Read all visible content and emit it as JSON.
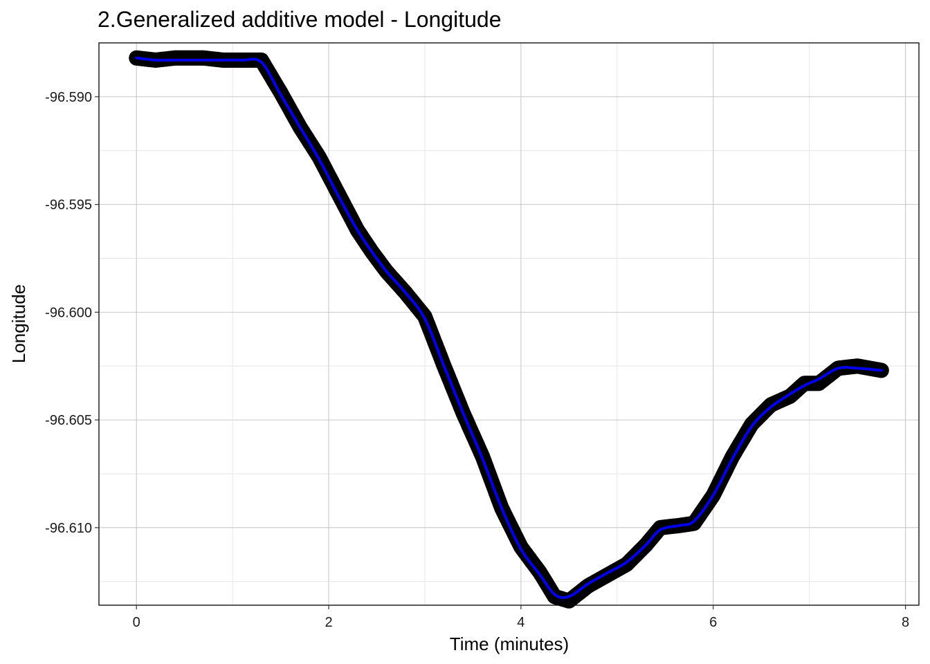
{
  "chart_data": {
    "type": "line",
    "title": "2.Generalized additive model - Longitude",
    "xlabel": "Time (minutes)",
    "ylabel": "Longitude",
    "xlim": [
      -0.39,
      8.14
    ],
    "ylim": [
      -96.6136,
      -96.5875
    ],
    "x_ticks": [
      0,
      2,
      4,
      6,
      8
    ],
    "y_ticks": [
      -96.59,
      -96.595,
      -96.6,
      -96.605,
      -96.61
    ],
    "x_tick_labels": [
      "0",
      "2",
      "4",
      "6",
      "8"
    ],
    "y_tick_labels": [
      "-96.590",
      "-96.595",
      "-96.600",
      "-96.605",
      "-96.610"
    ],
    "grid": true,
    "series": [
      {
        "style": "points",
        "color": "#000000",
        "x": [
          0.0,
          0.2,
          0.4,
          0.7,
          0.9,
          1.1,
          1.3,
          1.5,
          1.7,
          1.9,
          2.1,
          2.3,
          2.45,
          2.6,
          2.8,
          3.0,
          3.2,
          3.4,
          3.6,
          3.8,
          4.0,
          4.2,
          4.35,
          4.5,
          4.7,
          4.9,
          5.1,
          5.3,
          5.45,
          5.65,
          5.8,
          6.0,
          6.2,
          6.4,
          6.6,
          6.8,
          6.95,
          7.1,
          7.3,
          7.5,
          7.75
        ],
        "y": [
          -96.5882,
          -96.5883,
          -96.5882,
          -96.5882,
          -96.5883,
          -96.5883,
          -96.5883,
          -96.5898,
          -96.5914,
          -96.5928,
          -96.5945,
          -96.5962,
          -96.5972,
          -96.5981,
          -96.5991,
          -96.6002,
          -96.6025,
          -96.6047,
          -96.6067,
          -96.6091,
          -96.6109,
          -96.6121,
          -96.6132,
          -96.6134,
          -96.6127,
          -96.6122,
          -96.6117,
          -96.6108,
          -96.61,
          -96.6099,
          -96.6098,
          -96.6085,
          -96.6067,
          -96.6052,
          -96.6043,
          -96.6039,
          -96.6033,
          -96.6033,
          -96.6026,
          -96.6025,
          -96.6027
        ]
      },
      {
        "style": "smooth",
        "color": "#0000ee",
        "x": [
          0.0,
          0.2,
          0.4,
          0.7,
          0.9,
          1.1,
          1.3,
          1.5,
          1.7,
          1.9,
          2.1,
          2.3,
          2.45,
          2.6,
          2.8,
          3.0,
          3.2,
          3.4,
          3.6,
          3.8,
          4.0,
          4.2,
          4.35,
          4.5,
          4.7,
          4.9,
          5.1,
          5.3,
          5.45,
          5.65,
          5.8,
          6.0,
          6.2,
          6.4,
          6.6,
          6.8,
          6.95,
          7.1,
          7.3,
          7.5,
          7.75
        ],
        "y": [
          -96.5882,
          -96.5883,
          -96.5883,
          -96.5883,
          -96.5883,
          -96.5883,
          -96.5884,
          -96.5899,
          -96.5914,
          -96.5929,
          -96.5946,
          -96.5962,
          -96.5972,
          -96.5981,
          -96.5991,
          -96.6003,
          -96.6025,
          -96.6047,
          -96.6068,
          -96.6091,
          -96.611,
          -96.6122,
          -96.6131,
          -96.6132,
          -96.6126,
          -96.6121,
          -96.6116,
          -96.6108,
          -96.6101,
          -96.6099,
          -96.6097,
          -96.6085,
          -96.6068,
          -96.6053,
          -96.6044,
          -96.6038,
          -96.6034,
          -96.6031,
          -96.6026,
          -96.6026,
          -96.6027
        ]
      }
    ]
  },
  "colors": {
    "panel_border": "#000000",
    "grid_major": "#c8c8c8",
    "grid_minor": "#e6e6e6"
  }
}
